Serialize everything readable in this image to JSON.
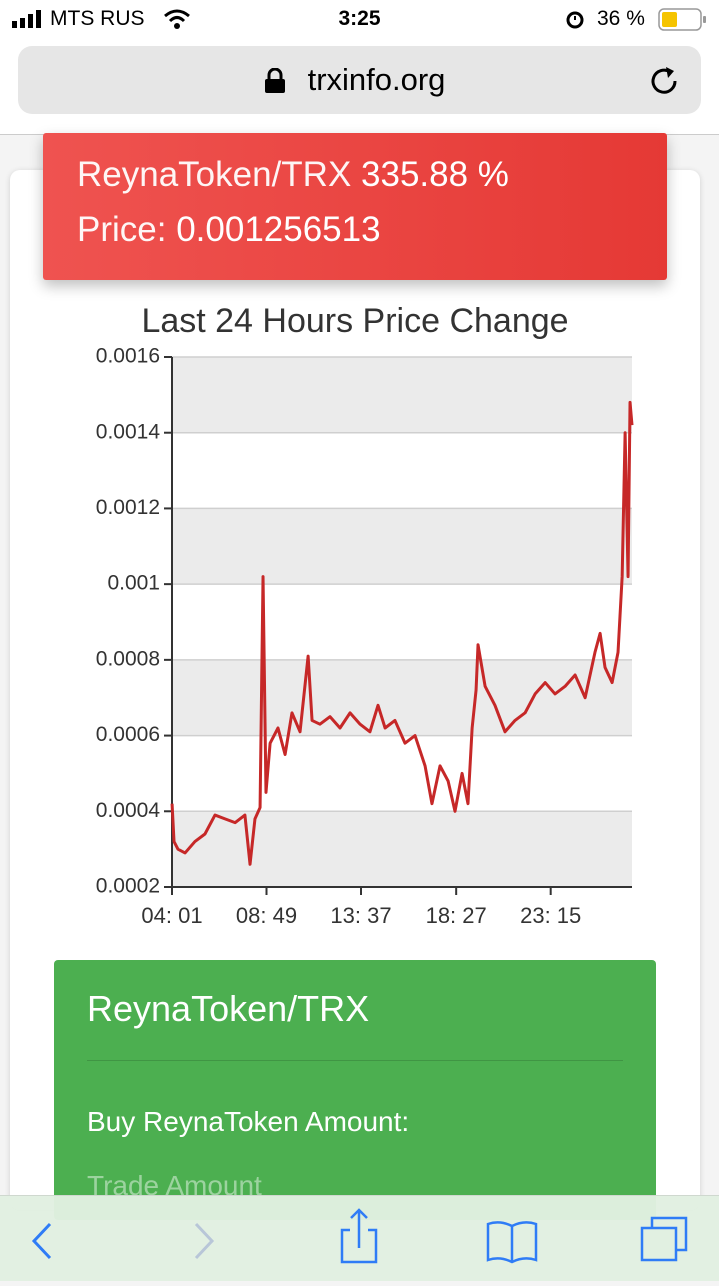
{
  "status_bar": {
    "carrier": "MTS RUS",
    "time": "3:25",
    "battery": "36 %"
  },
  "url": "trxinfo.org",
  "header": {
    "pair": "ReynaToken/TRX",
    "change": "335.88 %",
    "price_label": "Price:",
    "price": "0.001256513"
  },
  "chart_data": {
    "type": "line",
    "title": "Last 24 Hours Price Change",
    "color": "#c62828",
    "grid": true,
    "x": [
      4.02,
      4.12,
      4.32,
      4.68,
      5.18,
      5.69,
      6.2,
      6.71,
      7.22,
      7.72,
      7.98,
      8.23,
      8.49,
      8.64,
      8.79,
      9.0,
      9.4,
      9.76,
      10.11,
      10.52,
      10.93,
      11.13,
      11.53,
      12.04,
      12.55,
      13.06,
      13.57,
      14.07,
      14.48,
      14.84,
      15.34,
      15.85,
      16.36,
      16.87,
      17.22,
      17.63,
      18.04,
      18.39,
      18.75,
      19.05,
      19.26,
      19.46,
      19.56,
      19.92,
      20.42,
      20.93,
      21.44,
      21.95,
      22.46,
      22.97,
      23.47,
      23.98,
      24.49,
      25.0,
      25.5,
      25.76,
      26.01,
      26.37,
      26.67,
      26.88,
      27.03,
      27.18,
      27.28,
      27.38
    ],
    "values": [
      0.00042,
      0.00032,
      0.0003,
      0.00029,
      0.00032,
      0.00034,
      0.00039,
      0.00038,
      0.00037,
      0.00039,
      0.00026,
      0.00038,
      0.00041,
      0.00102,
      0.00045,
      0.00058,
      0.00062,
      0.00055,
      0.00066,
      0.00061,
      0.00081,
      0.00064,
      0.00063,
      0.00065,
      0.00062,
      0.00066,
      0.00063,
      0.00061,
      0.00068,
      0.00062,
      0.00064,
      0.00058,
      0.0006,
      0.00052,
      0.00042,
      0.00052,
      0.00048,
      0.0004,
      0.0005,
      0.00042,
      0.00062,
      0.00072,
      0.00084,
      0.00073,
      0.00068,
      0.00061,
      0.00064,
      0.00066,
      0.00071,
      0.00074,
      0.00071,
      0.00073,
      0.00076,
      0.0007,
      0.00082,
      0.00087,
      0.00078,
      0.00074,
      0.00082,
      0.00102,
      0.0014,
      0.00102,
      0.00148,
      0.00142
    ],
    "xlim": [
      4.0167,
      27.38
    ],
    "xticks": [
      {
        "value": 4.0167,
        "label": "04: 01"
      },
      {
        "value": 8.8167,
        "label": "08: 49"
      },
      {
        "value": 13.6167,
        "label": "13: 37"
      },
      {
        "value": 18.45,
        "label": "18: 27"
      },
      {
        "value": 23.25,
        "label": "23: 15"
      }
    ],
    "ylim": [
      0.0002,
      0.0016
    ],
    "yticks": [
      0.0002,
      0.0004,
      0.0006,
      0.0008,
      0.001,
      0.0012,
      0.0014,
      0.0016
    ]
  },
  "trade": {
    "pair": "ReynaToken/TRX",
    "buy_label": "Buy ReynaToken Amount:",
    "placeholder": "Trade Amount"
  }
}
